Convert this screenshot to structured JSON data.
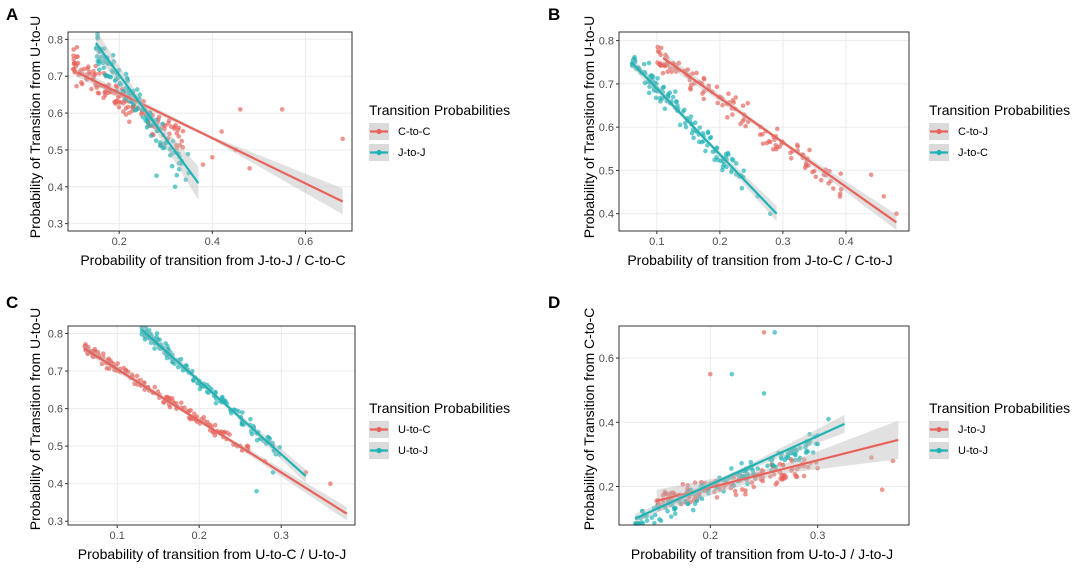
{
  "colors": {
    "red": "#E8635B",
    "teal": "#1FB3B6",
    "band": "#BDBDBD",
    "frame": "#333333",
    "grid": "#EBEBEB"
  },
  "chart_data": [
    {
      "panel": "A",
      "type": "scatter",
      "xlabel": "Probability of transition from J-to-J / C-to-C",
      "ylabel": "Probability of Transition from U-to-U",
      "xlim": [
        0.09,
        0.7
      ],
      "ylim": [
        0.28,
        0.82
      ],
      "xticks": [
        0.2,
        0.4,
        0.6
      ],
      "xtick_labels": [
        "0.2",
        "0.4",
        "0.6"
      ],
      "yticks": [
        0.3,
        0.4,
        0.5,
        0.6,
        0.7,
        0.8
      ],
      "ytick_labels": [
        "0.3",
        "0.4",
        "0.5",
        "0.6",
        "0.7",
        "0.8"
      ],
      "legend_title": "Transition Probabilities",
      "series": [
        {
          "name": "C-to-C",
          "color": "red",
          "trend": [
            [
              0.11,
              0.71
            ],
            [
              0.68,
              0.36
            ]
          ],
          "band_halfwidth": [
            0.012,
            0.004,
            0.035
          ],
          "cloud": {
            "seed": 11,
            "n": 150,
            "xmin": 0.1,
            "xmax": 0.34,
            "slope": -0.9,
            "x0": 0.18,
            "y0": 0.66,
            "spread": 0.06
          },
          "outliers": [
            [
              0.42,
              0.55
            ],
            [
              0.45,
              0.5
            ],
            [
              0.48,
              0.45
            ],
            [
              0.55,
              0.61
            ],
            [
              0.68,
              0.53
            ],
            [
              0.38,
              0.46
            ],
            [
              0.4,
              0.48
            ],
            [
              0.46,
              0.61
            ]
          ]
        },
        {
          "name": "J-to-J",
          "color": "teal",
          "trend": [
            [
              0.15,
              0.79
            ],
            [
              0.37,
              0.41
            ]
          ],
          "band_halfwidth": [
            0.035,
            0.012,
            0.045
          ],
          "cloud": {
            "seed": 23,
            "n": 120,
            "xmin": 0.15,
            "xmax": 0.35,
            "slope": -1.7,
            "x0": 0.23,
            "y0": 0.64,
            "spread": 0.07
          },
          "outliers": [
            [
              0.32,
              0.4
            ],
            [
              0.28,
              0.43
            ]
          ]
        }
      ]
    },
    {
      "panel": "B",
      "type": "scatter",
      "xlabel": "Probability of transition from J-to-C / C-to-J",
      "ylabel": "Probability of Transition from U-to-U",
      "xlim": [
        0.04,
        0.5
      ],
      "ylim": [
        0.36,
        0.82
      ],
      "xticks": [
        0.1,
        0.2,
        0.3,
        0.4
      ],
      "xtick_labels": [
        "0.1",
        "0.2",
        "0.3",
        "0.4"
      ],
      "yticks": [
        0.4,
        0.5,
        0.6,
        0.7,
        0.8
      ],
      "ytick_labels": [
        "0.4",
        "0.5",
        "0.6",
        "0.7",
        "0.8"
      ],
      "legend_title": "Transition Probabilities",
      "series": [
        {
          "name": "C-to-J",
          "color": "red",
          "trend": [
            [
              0.11,
              0.76
            ],
            [
              0.48,
              0.38
            ]
          ],
          "band_halfwidth": [
            0.012,
            0.004,
            0.018
          ],
          "cloud": {
            "seed": 37,
            "n": 130,
            "xmin": 0.1,
            "xmax": 0.4,
            "slope": -1.03,
            "x0": 0.25,
            "y0": 0.61,
            "spread": 0.045
          },
          "outliers": [
            [
              0.44,
              0.49
            ],
            [
              0.46,
              0.44
            ],
            [
              0.48,
              0.4
            ]
          ]
        },
        {
          "name": "J-to-C",
          "color": "teal",
          "trend": [
            [
              0.06,
              0.75
            ],
            [
              0.29,
              0.4
            ]
          ],
          "band_halfwidth": [
            0.012,
            0.004,
            0.018
          ],
          "cloud": {
            "seed": 41,
            "n": 130,
            "xmin": 0.06,
            "xmax": 0.24,
            "slope": -1.52,
            "x0": 0.15,
            "y0": 0.615,
            "spread": 0.045
          },
          "outliers": [
            [
              0.26,
              0.44
            ],
            [
              0.28,
              0.4
            ]
          ]
        }
      ]
    },
    {
      "panel": "C",
      "type": "scatter",
      "xlabel": "Probability of transition from U-to-C / U-to-J",
      "ylabel": "Probability of Transition from U-to-U",
      "xlim": [
        0.04,
        0.39
      ],
      "ylim": [
        0.29,
        0.82
      ],
      "xticks": [
        0.1,
        0.2,
        0.3
      ],
      "xtick_labels": [
        "0.1",
        "0.2",
        "0.3"
      ],
      "yticks": [
        0.3,
        0.4,
        0.5,
        0.6,
        0.7,
        0.8
      ],
      "ytick_labels": [
        "0.3",
        "0.4",
        "0.5",
        "0.6",
        "0.7",
        "0.8"
      ],
      "legend_title": "Transition Probabilities",
      "series": [
        {
          "name": "U-to-C",
          "color": "red",
          "trend": [
            [
              0.06,
              0.76
            ],
            [
              0.38,
              0.32
            ]
          ],
          "band_halfwidth": [
            0.01,
            0.004,
            0.018
          ],
          "cloud": {
            "seed": 53,
            "n": 150,
            "xmin": 0.06,
            "xmax": 0.26,
            "slope": -1.38,
            "x0": 0.15,
            "y0": 0.64,
            "spread": 0.025
          },
          "outliers": [
            [
              0.33,
              0.43
            ],
            [
              0.36,
              0.4
            ],
            [
              0.28,
              0.46
            ]
          ]
        },
        {
          "name": "U-to-J",
          "color": "teal",
          "trend": [
            [
              0.13,
              0.81
            ],
            [
              0.33,
              0.42
            ]
          ],
          "band_halfwidth": [
            0.014,
            0.005,
            0.018
          ],
          "cloud": {
            "seed": 67,
            "n": 150,
            "xmin": 0.13,
            "xmax": 0.3,
            "slope": -1.95,
            "x0": 0.21,
            "y0": 0.655,
            "spread": 0.03
          },
          "outliers": [
            [
              0.27,
              0.38
            ],
            [
              0.29,
              0.43
            ]
          ]
        }
      ]
    },
    {
      "panel": "D",
      "type": "scatter",
      "xlabel": "Probability of transition from U-to-J / J-to-J",
      "ylabel": "Probability of Transition from C-to-C",
      "xlim": [
        0.115,
        0.385
      ],
      "ylim": [
        0.08,
        0.7
      ],
      "xticks": [
        0.2,
        0.3
      ],
      "xtick_labels": [
        "0.2",
        "0.3"
      ],
      "yticks": [
        0.2,
        0.4,
        0.6
      ],
      "ytick_labels": [
        "0.2",
        "0.4",
        "0.6"
      ],
      "legend_title": "Transition Probabilities",
      "series": [
        {
          "name": "J-to-J",
          "color": "red",
          "trend": [
            [
              0.15,
              0.155
            ],
            [
              0.375,
              0.345
            ]
          ],
          "band_halfwidth": [
            0.035,
            0.012,
            0.06
          ],
          "cloud": {
            "seed": 79,
            "n": 140,
            "xmin": 0.15,
            "xmax": 0.3,
            "slope": 0.8,
            "x0": 0.22,
            "y0": 0.21,
            "spread": 0.055
          },
          "outliers": [
            [
              0.25,
              0.68
            ],
            [
              0.2,
              0.55
            ],
            [
              0.35,
              0.29
            ],
            [
              0.36,
              0.19
            ],
            [
              0.37,
              0.28
            ]
          ]
        },
        {
          "name": "U-to-J",
          "color": "teal",
          "trend": [
            [
              0.13,
              0.1
            ],
            [
              0.325,
              0.395
            ]
          ],
          "band_halfwidth": [
            0.015,
            0.006,
            0.028
          ],
          "cloud": {
            "seed": 97,
            "n": 140,
            "xmin": 0.13,
            "xmax": 0.3,
            "slope": 1.5,
            "x0": 0.22,
            "y0": 0.22,
            "spread": 0.05
          },
          "outliers": [
            [
              0.26,
              0.68
            ],
            [
              0.22,
              0.55
            ],
            [
              0.25,
              0.49
            ],
            [
              0.31,
              0.41
            ]
          ]
        }
      ]
    }
  ]
}
